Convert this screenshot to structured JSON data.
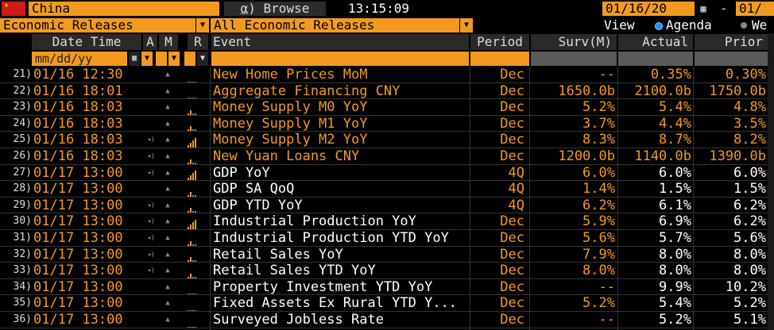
{
  "topbar": {
    "country": "China",
    "browse_label": "⍶) Browse",
    "time": "13:15:09",
    "date_from": "01/16/20",
    "date_sep": "-",
    "date_to": "01/"
  },
  "filterbar": {
    "category": "Economic Releases",
    "subcategory": "All Economic Releases",
    "view_label": "View",
    "view_agenda": "Agenda",
    "view_week": "We"
  },
  "header": {
    "datetime": "Date Time",
    "a": "A",
    "m": "M",
    "r": "R",
    "event": "Event",
    "period": "Period",
    "surv": "Surv(M)",
    "actual": "Actual",
    "prior": "Prior"
  },
  "inputs": {
    "date_placeholder": "mm/dd/yy"
  },
  "colors": {
    "accent": "#f39a1e",
    "header_bg": "#2a2a2a",
    "radio_on": "#1e90ff"
  },
  "rows": [
    {
      "num": "21)",
      "datetime": "01/16 12:30",
      "alarm": false,
      "rel": "dots",
      "event": "New Home Prices MoM",
      "period": "Dec",
      "surv": "--",
      "actual": "0.35%",
      "prior": "0.30%",
      "tone": "orange"
    },
    {
      "num": "22)",
      "datetime": "01/16 18:01",
      "alarm": false,
      "rel": "dots",
      "event": "Aggregate Financing CNY",
      "period": "Dec",
      "surv": "1650.0b",
      "actual": "2100.0b",
      "prior": "1750.0b",
      "tone": "orange"
    },
    {
      "num": "23)",
      "datetime": "01/16 18:03",
      "alarm": false,
      "rel": "low",
      "event": "Money Supply M0 YoY",
      "period": "Dec",
      "surv": "5.2%",
      "actual": "5.4%",
      "prior": "4.8%",
      "tone": "orange"
    },
    {
      "num": "24)",
      "datetime": "01/16 18:03",
      "alarm": false,
      "rel": "low",
      "event": "Money Supply M1 YoY",
      "period": "Dec",
      "surv": "3.7%",
      "actual": "4.4%",
      "prior": "3.5%",
      "tone": "orange"
    },
    {
      "num": "25)",
      "datetime": "01/16 18:03",
      "alarm": true,
      "rel": "high",
      "event": "Money Supply M2 YoY",
      "period": "Dec",
      "surv": "8.3%",
      "actual": "8.7%",
      "prior": "8.2%",
      "tone": "orange"
    },
    {
      "num": "26)",
      "datetime": "01/16 18:03",
      "alarm": true,
      "rel": "low",
      "event": "New Yuan Loans CNY",
      "period": "Dec",
      "surv": "1200.0b",
      "actual": "1140.0b",
      "prior": "1390.0b",
      "tone": "orange"
    },
    {
      "num": "27)",
      "datetime": "01/17 13:00",
      "alarm": true,
      "rel": "high",
      "event": "GDP YoY",
      "period": "4Q",
      "surv": "6.0%",
      "actual": "6.0%",
      "prior": "6.0%",
      "tone": "white"
    },
    {
      "num": "28)",
      "datetime": "01/17 13:00",
      "alarm": false,
      "rel": "low",
      "event": "GDP SA QoQ",
      "period": "4Q",
      "surv": "1.4%",
      "actual": "1.5%",
      "prior": "1.5%",
      "tone": "white"
    },
    {
      "num": "29)",
      "datetime": "01/17 13:00",
      "alarm": true,
      "rel": "low",
      "event": "GDP YTD YoY",
      "period": "4Q",
      "surv": "6.2%",
      "actual": "6.1%",
      "prior": "6.2%",
      "tone": "white"
    },
    {
      "num": "30)",
      "datetime": "01/17 13:00",
      "alarm": true,
      "rel": "high",
      "event": "Industrial Production YoY",
      "period": "Dec",
      "surv": "5.9%",
      "actual": "6.9%",
      "prior": "6.2%",
      "tone": "white"
    },
    {
      "num": "31)",
      "datetime": "01/17 13:00",
      "alarm": true,
      "rel": "low",
      "event": "Industrial Production YTD YoY",
      "period": "Dec",
      "surv": "5.6%",
      "actual": "5.7%",
      "prior": "5.6%",
      "tone": "white"
    },
    {
      "num": "32)",
      "datetime": "01/17 13:00",
      "alarm": true,
      "rel": "low",
      "event": "Retail Sales YoY",
      "period": "Dec",
      "surv": "7.9%",
      "actual": "8.0%",
      "prior": "8.0%",
      "tone": "white"
    },
    {
      "num": "33)",
      "datetime": "01/17 13:00",
      "alarm": true,
      "rel": "low",
      "event": "Retail Sales YTD YoY",
      "period": "Dec",
      "surv": "8.0%",
      "actual": "8.0%",
      "prior": "8.0%",
      "tone": "white"
    },
    {
      "num": "34)",
      "datetime": "01/17 13:00",
      "alarm": false,
      "rel": "dots",
      "event": "Property Investment YTD YoY",
      "period": "Dec",
      "surv": "--",
      "actual": "9.9%",
      "prior": "10.2%",
      "tone": "white"
    },
    {
      "num": "35)",
      "datetime": "01/17 13:00",
      "alarm": false,
      "rel": "dots",
      "event": "Fixed Assets Ex Rural YTD Y...",
      "period": "Dec",
      "surv": "5.2%",
      "actual": "5.4%",
      "prior": "5.2%",
      "tone": "white"
    },
    {
      "num": "36)",
      "datetime": "01/17 13:00",
      "alarm": false,
      "rel": "dots",
      "event": "Surveyed Jobless Rate",
      "period": "Dec",
      "surv": "--",
      "actual": "5.2%",
      "prior": "5.1%",
      "tone": "white"
    }
  ]
}
